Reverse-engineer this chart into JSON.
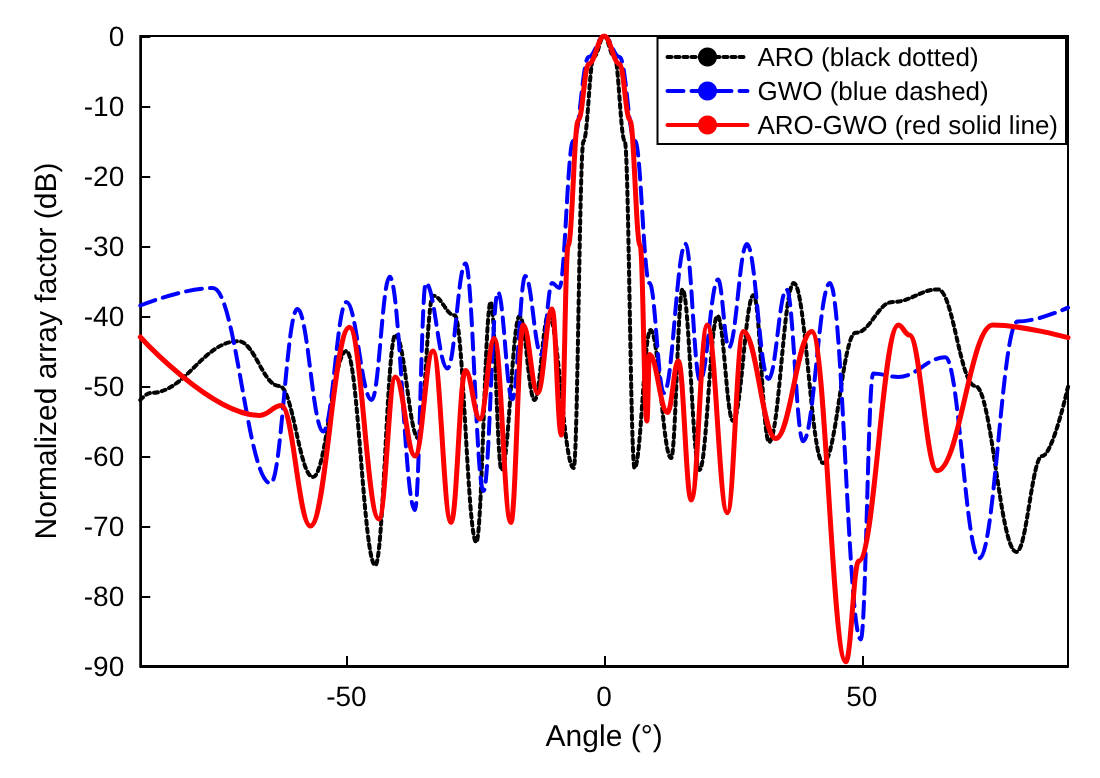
{
  "chart_data": {
    "type": "line",
    "xlabel": "Angle (°)",
    "ylabel": "Normalized array factor (dB)",
    "xlim": [
      -90,
      90
    ],
    "ylim": [
      -90,
      0
    ],
    "xticks": [
      -50,
      0,
      50
    ],
    "yticks": [
      0,
      -10,
      -20,
      -30,
      -40,
      -50,
      -60,
      -70,
      -80,
      -90
    ],
    "grid": false,
    "legend": "top right",
    "marker": "none",
    "series": [
      {
        "name": "ARO (black dotted)",
        "color": "#000000",
        "line_style": "dotted",
        "x": [
          -90,
          -88,
          -71,
          -63,
          -56.5,
          -50,
          -44.4,
          -40.5,
          -36,
          -33.2,
          -29,
          -24.8,
          -22,
          -19.9,
          -16.4,
          -13.5,
          -10.8,
          -5.9,
          -4,
          -2,
          0,
          2,
          4,
          5.9,
          9,
          13,
          15.2,
          18.5,
          22,
          25,
          29,
          32,
          36.8,
          42.5,
          48.8,
          56,
          64.8,
          72,
          80,
          85,
          90
        ],
        "values": [
          -52,
          -51,
          -43.6,
          -50,
          -63,
          -45,
          -75.6,
          -42.7,
          -57.5,
          -37.1,
          -39.9,
          -72.3,
          -38,
          -62,
          -40,
          -52,
          -39.9,
          -61.7,
          -15,
          -3,
          0,
          -3,
          -15,
          -61.7,
          -42,
          -60.3,
          -36.2,
          -62,
          -40,
          -55,
          -37,
          -58,
          -35.3,
          -61,
          -42.4,
          -38,
          -36.2,
          -50,
          -73.7,
          -60,
          -50.1
        ]
      },
      {
        "name": "GWO (blue dashed)",
        "color": "#0000ff",
        "line_style": "dashed",
        "x": [
          -90,
          -75.9,
          -64.7,
          -59.5,
          -54.5,
          -50,
          -45.1,
          -41.6,
          -36.7,
          -34.6,
          -30.4,
          -26.9,
          -23.4,
          -20.6,
          -17.8,
          -15.3,
          -12.2,
          -10.1,
          -8.7,
          -6,
          -3,
          0,
          3,
          6,
          8.8,
          11.6,
          15.8,
          18.6,
          22.1,
          24.2,
          27.7,
          31.9,
          35.4,
          38.6,
          43.8,
          49.8,
          52.2,
          57.1,
          66.2,
          72.8,
          80.2,
          90
        ],
        "values": [
          -38.5,
          -36,
          -63.9,
          -39,
          -56.5,
          -38,
          -52,
          -34.4,
          -67.7,
          -35.3,
          -47.5,
          -32.5,
          -65,
          -36.6,
          -51.9,
          -34.3,
          -45.5,
          -35.3,
          -36,
          -15,
          -3,
          0,
          -3,
          -15,
          -35.3,
          -51,
          -29.7,
          -49.2,
          -34.8,
          -44.5,
          -29.7,
          -49,
          -36.2,
          -57.9,
          -35.3,
          -86.2,
          -48.2,
          -48.7,
          -45.9,
          -74.6,
          -40.8,
          -38.8
        ]
      },
      {
        "name": "ARO-GWO (red solid line)",
        "color": "#ff0000",
        "line_style": "solid",
        "x": [
          -90,
          -66.8,
          -62.6,
          -57,
          -49.4,
          -43.7,
          -40.5,
          -36.7,
          -33.2,
          -29.7,
          -26.9,
          -24.1,
          -21.3,
          -18.1,
          -15.7,
          -12.9,
          -10.1,
          -8.3,
          -7,
          -5,
          -3,
          0,
          3,
          5,
          7,
          8.3,
          8.8,
          12.3,
          14.4,
          16.9,
          20,
          23.9,
          27,
          33.3,
          40.3,
          46.9,
          49.4,
          57.1,
          59.2,
          64.6,
          75.4,
          90
        ],
        "values": [
          -43,
          -54.2,
          -52.8,
          -70,
          -41.6,
          -69,
          -48.7,
          -60,
          -45,
          -69.5,
          -47.8,
          -54.7,
          -43.2,
          -69.5,
          -41.3,
          -51,
          -39,
          -57,
          -30,
          -12,
          -4,
          0,
          -4,
          -12,
          -30,
          -55,
          -45.5,
          -53.8,
          -46.4,
          -66.3,
          -41.3,
          -68.1,
          -42.2,
          -57.5,
          -42.2,
          -89.4,
          -75,
          -41.3,
          -42.7,
          -62.1,
          -41.3,
          -43.1
        ]
      }
    ]
  }
}
